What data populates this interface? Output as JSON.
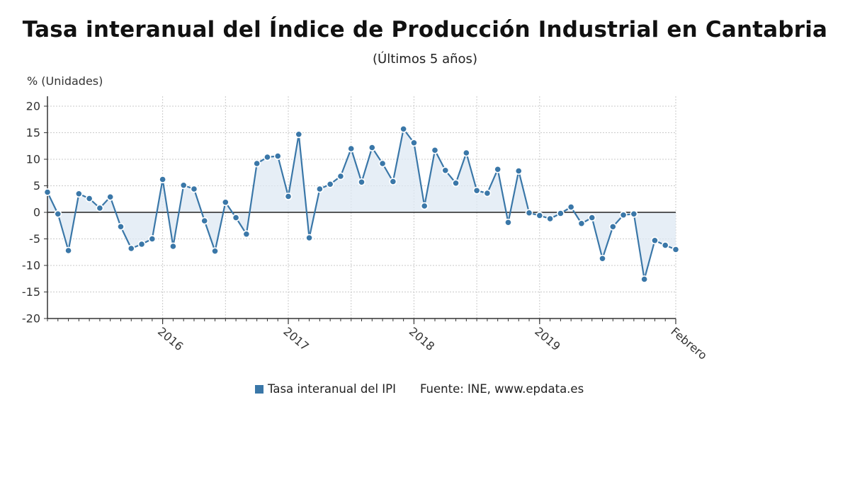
{
  "chart_data": {
    "type": "line",
    "title": "Tasa interanual del Índice de Producción Industrial en Cantabria",
    "subtitle": "(Últimos 5 años)",
    "ylabel": "% (Unidades)",
    "ylim": [
      -20,
      20
    ],
    "yticks": [
      20,
      15,
      10,
      5,
      0,
      -5,
      -10,
      -15,
      -20
    ],
    "x_start": "2015-02",
    "x_end": "2020-02",
    "xtick_labels": [
      {
        "label": "2016",
        "x": "2016-01"
      },
      {
        "label": "2017",
        "x": "2017-01"
      },
      {
        "label": "2018",
        "x": "2018-01"
      },
      {
        "label": "2019",
        "x": "2019-01"
      },
      {
        "label": "Febrero",
        "x": "2020-02"
      }
    ],
    "series": [
      {
        "name": "Tasa interanual del IPI",
        "color": "#3a77a8",
        "fill": "#dde8f3",
        "points": [
          {
            "x": "2015-02",
            "y": 3.8
          },
          {
            "x": "2015-03",
            "y": -0.3
          },
          {
            "x": "2015-04",
            "y": -7.2
          },
          {
            "x": "2015-05",
            "y": 3.5
          },
          {
            "x": "2015-06",
            "y": 2.6
          },
          {
            "x": "2015-07",
            "y": 0.8
          },
          {
            "x": "2015-08",
            "y": 2.9
          },
          {
            "x": "2015-09",
            "y": -2.7
          },
          {
            "x": "2015-10",
            "y": -6.8
          },
          {
            "x": "2015-11",
            "y": -6.0
          },
          {
            "x": "2015-12",
            "y": -5.0
          },
          {
            "x": "2016-01",
            "y": 6.2
          },
          {
            "x": "2016-02",
            "y": -6.4
          },
          {
            "x": "2016-03",
            "y": 5.1
          },
          {
            "x": "2016-04",
            "y": 4.4
          },
          {
            "x": "2016-05",
            "y": -1.6
          },
          {
            "x": "2016-06",
            "y": -7.3
          },
          {
            "x": "2016-07",
            "y": 1.9
          },
          {
            "x": "2016-08",
            "y": -1.0
          },
          {
            "x": "2016-09",
            "y": -4.1
          },
          {
            "x": "2016-10",
            "y": 9.2
          },
          {
            "x": "2016-11",
            "y": 10.4
          },
          {
            "x": "2016-12",
            "y": 10.6
          },
          {
            "x": "2017-01",
            "y": 3.0
          },
          {
            "x": "2017-02",
            "y": 14.7
          },
          {
            "x": "2017-03",
            "y": -4.8
          },
          {
            "x": "2017-04",
            "y": 4.4
          },
          {
            "x": "2017-05",
            "y": 5.3
          },
          {
            "x": "2017-06",
            "y": 6.8
          },
          {
            "x": "2017-07",
            "y": 12.0
          },
          {
            "x": "2017-08",
            "y": 5.7
          },
          {
            "x": "2017-09",
            "y": 12.2
          },
          {
            "x": "2017-10",
            "y": 9.2
          },
          {
            "x": "2017-11",
            "y": 5.8
          },
          {
            "x": "2017-12",
            "y": 15.7
          },
          {
            "x": "2018-01",
            "y": 13.1
          },
          {
            "x": "2018-02",
            "y": 1.2
          },
          {
            "x": "2018-03",
            "y": 11.7
          },
          {
            "x": "2018-04",
            "y": 7.9
          },
          {
            "x": "2018-05",
            "y": 5.5
          },
          {
            "x": "2018-06",
            "y": 11.2
          },
          {
            "x": "2018-07",
            "y": 4.1
          },
          {
            "x": "2018-08",
            "y": 3.6
          },
          {
            "x": "2018-09",
            "y": 8.1
          },
          {
            "x": "2018-10",
            "y": -1.9
          },
          {
            "x": "2018-11",
            "y": 7.8
          },
          {
            "x": "2018-12",
            "y": -0.1
          },
          {
            "x": "2019-01",
            "y": -0.6
          },
          {
            "x": "2019-02",
            "y": -1.2
          },
          {
            "x": "2019-03",
            "y": -0.2
          },
          {
            "x": "2019-04",
            "y": 1.0
          },
          {
            "x": "2019-05",
            "y": -2.1
          },
          {
            "x": "2019-06",
            "y": -1.0
          },
          {
            "x": "2019-07",
            "y": -8.7
          },
          {
            "x": "2019-08",
            "y": -2.7
          },
          {
            "x": "2019-09",
            "y": -0.5
          },
          {
            "x": "2019-10",
            "y": -0.3
          },
          {
            "x": "2019-11",
            "y": -12.6
          },
          {
            "x": "2019-12",
            "y": -5.3
          },
          {
            "x": "2020-01",
            "y": -6.2
          },
          {
            "x": "2020-02",
            "y": -7.0
          }
        ]
      }
    ],
    "grid": true,
    "legend_position": "bottom"
  },
  "legend": {
    "series_label": "Tasa interanual del IPI",
    "source": "Fuente: INE, www.epdata.es"
  }
}
